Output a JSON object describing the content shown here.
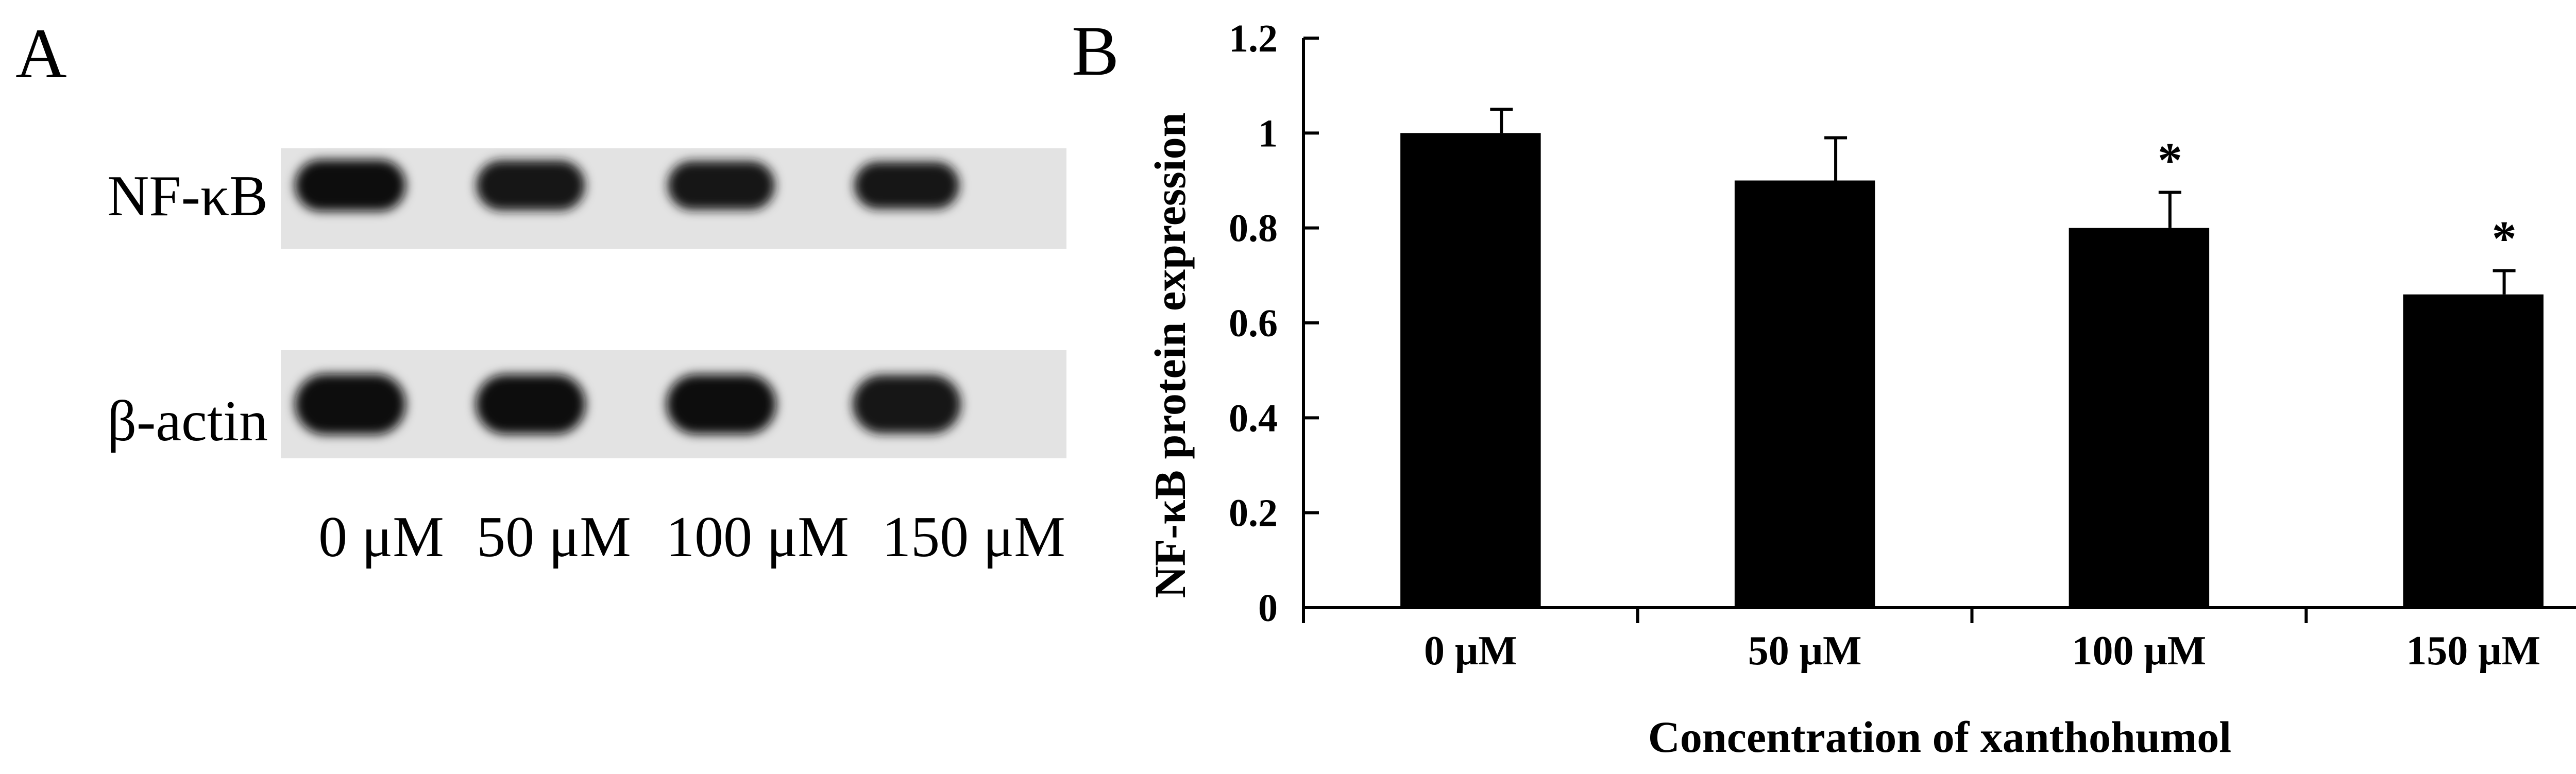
{
  "panel_a": {
    "label": "A",
    "blots": [
      {
        "name": "NF-κB",
        "band_intensity": [
          1.0,
          0.9,
          0.82,
          0.72
        ]
      },
      {
        "name": "β-actin",
        "band_intensity": [
          1.0,
          0.95,
          0.95,
          0.88
        ]
      }
    ],
    "lanes": [
      "0 μM",
      "50 μM",
      "100 μM",
      "150 μM"
    ]
  },
  "panel_b": {
    "label": "B"
  },
  "chart_data": {
    "type": "bar",
    "categories": [
      "0 μM",
      "50 μM",
      "100 μM",
      "150 μM"
    ],
    "values": [
      1.0,
      0.9,
      0.8,
      0.66
    ],
    "errors": [
      0.05,
      0.09,
      0.075,
      0.05
    ],
    "significance": [
      "",
      "",
      "*",
      "*"
    ],
    "xlabel": "Concentration of xanthohumol",
    "ylabel": "NF-κB protein expression",
    "ylim": [
      0,
      1.2
    ],
    "yticks": [
      "0",
      "0.2",
      "0.4",
      "0.6",
      "0.8",
      "1",
      "1.2"
    ],
    "grid": false,
    "bar_color": "#000000"
  }
}
